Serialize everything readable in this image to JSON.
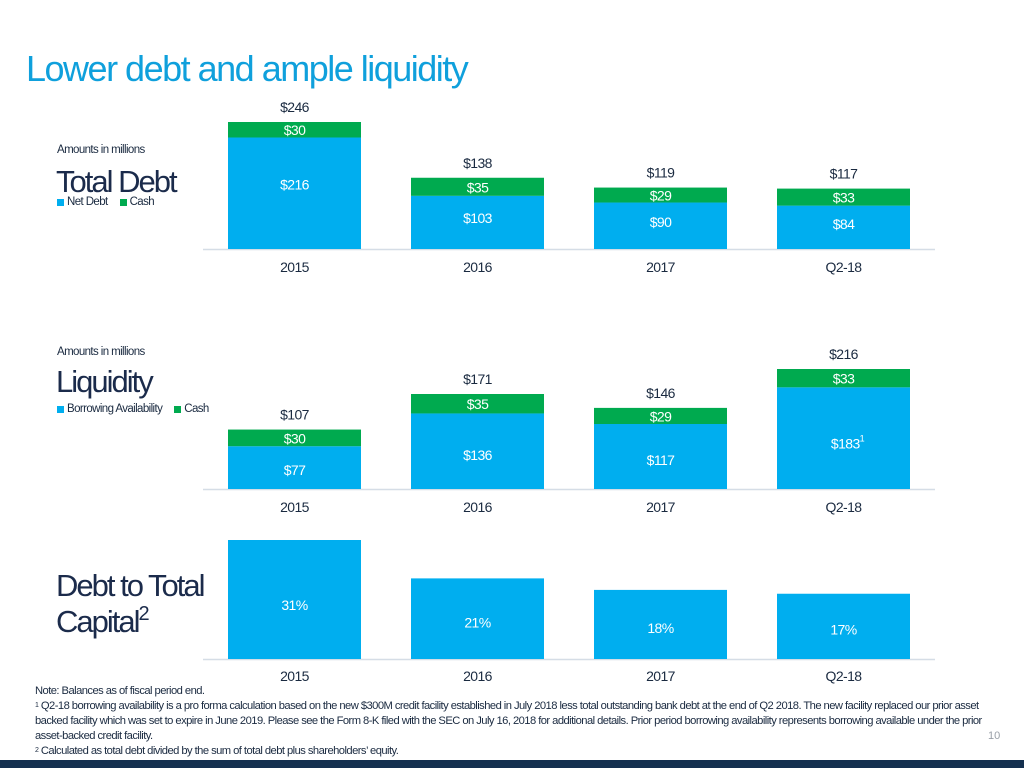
{
  "page": {
    "title": "Lower debt and ample liquidity",
    "page_number": "10",
    "colors": {
      "blue": "#00aeef",
      "green": "#00aa4f",
      "title": "#0fa0dc",
      "navy": "#14304f"
    }
  },
  "sections": {
    "total_debt": {
      "amounts_note": "Amounts in millions",
      "title": "Total Debt",
      "legend": [
        {
          "label": "Net Debt",
          "color": "#00aeef"
        },
        {
          "label": "Cash",
          "color": "#00aa4f"
        }
      ]
    },
    "liquidity": {
      "amounts_note": "Amounts in millions",
      "title": "Liquidity",
      "legend": [
        {
          "label": "Borrowing Availability",
          "color": "#00aeef"
        },
        {
          "label": "Cash",
          "color": "#00aa4f"
        }
      ]
    },
    "debt_to_capital": {
      "title_line1": "Debt to Total",
      "title_line2": "Capital",
      "title_sup": "2"
    }
  },
  "chart_data": [
    {
      "id": "total_debt",
      "type": "bar",
      "stacked": true,
      "title": "Total Debt",
      "units": "Amounts in millions",
      "categories": [
        "2015",
        "2016",
        "2017",
        "Q2-18"
      ],
      "series": [
        {
          "name": "Net Debt",
          "color": "#00aeef",
          "values": [
            216,
            103,
            90,
            84
          ],
          "labels": [
            "$216",
            "$103",
            "$90",
            "$84"
          ]
        },
        {
          "name": "Cash",
          "color": "#00aa4f",
          "values": [
            30,
            35,
            29,
            33
          ],
          "labels": [
            "$30",
            "$35",
            "$29",
            "$33"
          ]
        }
      ],
      "totals": [
        246,
        138,
        119,
        117
      ],
      "total_labels": [
        "$246",
        "$138",
        "$119",
        "$117"
      ],
      "legend": "left",
      "grid": false,
      "ylim": [
        0,
        246
      ]
    },
    {
      "id": "liquidity",
      "type": "bar",
      "stacked": true,
      "title": "Liquidity",
      "units": "Amounts in millions",
      "categories": [
        "2015",
        "2016",
        "2017",
        "Q2-18"
      ],
      "series": [
        {
          "name": "Borrowing Availability",
          "color": "#00aeef",
          "values": [
            77,
            136,
            117,
            183
          ],
          "labels": [
            "$77",
            "$136",
            "$117",
            "$183"
          ],
          "footnotes": [
            "",
            "",
            "",
            "1"
          ]
        },
        {
          "name": "Cash",
          "color": "#00aa4f",
          "values": [
            30,
            35,
            29,
            33
          ],
          "labels": [
            "$30",
            "$35",
            "$29",
            "$33"
          ]
        }
      ],
      "totals": [
        107,
        171,
        146,
        216
      ],
      "total_labels": [
        "$107",
        "$171",
        "$146",
        "$216"
      ],
      "legend": "left",
      "grid": false,
      "ylim": [
        0,
        216
      ]
    },
    {
      "id": "debt_to_capital",
      "type": "bar",
      "title": "Debt to Total Capital",
      "categories": [
        "2015",
        "2016",
        "2017",
        "Q2-18"
      ],
      "series": [
        {
          "name": "Debt to Total Capital",
          "color": "#00aeef",
          "values": [
            31,
            21,
            18,
            17
          ],
          "labels": [
            "31%",
            "21%",
            "18%",
            "17%"
          ]
        }
      ],
      "grid": false,
      "ylim": [
        0,
        31
      ]
    }
  ],
  "notes": {
    "note": "Note: Balances as of fiscal period end.",
    "footnote1_mark": "1",
    "footnote1": "Q2-18 borrowing availability is a pro forma calculation based on the new $300M credit facility established in July 2018 less total outstanding bank debt at the end of Q2 2018. The new facility replaced our prior asset backed facility which was set to expire in June 2019. Please see the Form 8-K filed with the SEC on July 16, 2018 for additional details.  Prior period borrowing availability represents borrowing available under the prior asset-backed credit facility.",
    "footnote2_mark": "2",
    "footnote2": "Calculated as total debt divided by the sum of total debt plus shareholders’ equity."
  }
}
